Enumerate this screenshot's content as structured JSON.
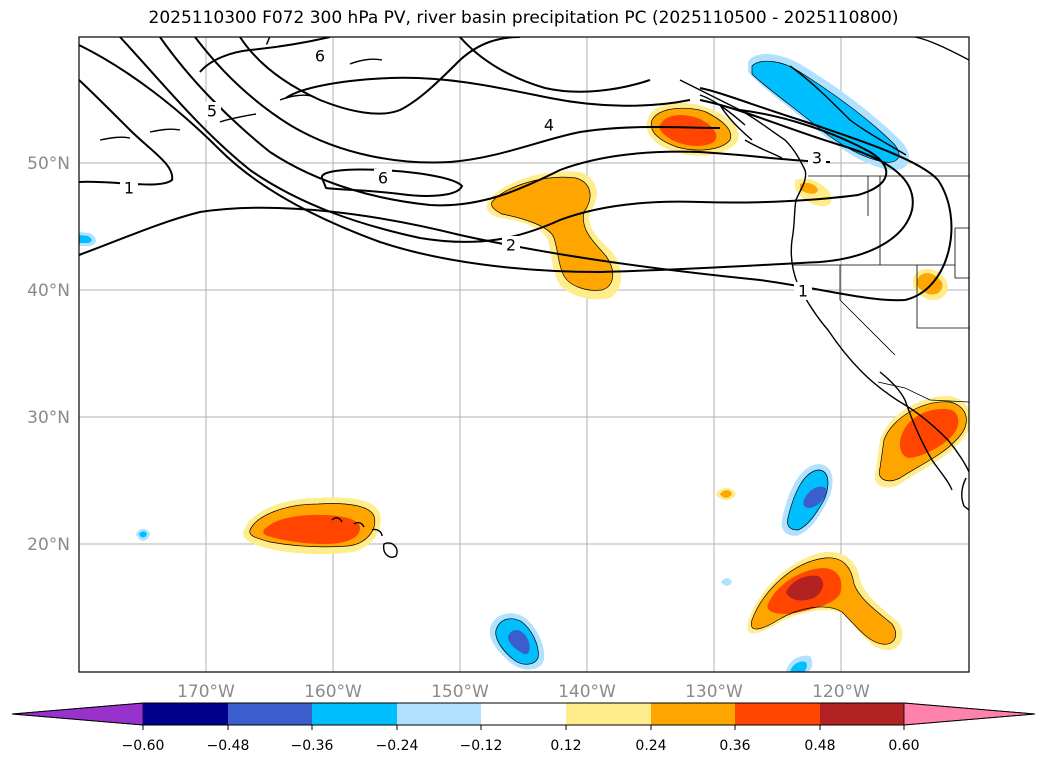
{
  "title": "2025110300 F072 300 hPa PV, river basin precipitation PC (2025110500 - 2025110800)",
  "map": {
    "lon_range": [
      -180,
      -110
    ],
    "lat_range": [
      10,
      60
    ],
    "lat_labels": [
      "20°N",
      "30°N",
      "40°N",
      "50°N"
    ],
    "lon_labels": [
      "170°W",
      "160°W",
      "150°W",
      "140°W",
      "130°W",
      "120°W"
    ],
    "pv_contour_labels": [
      "1",
      "1",
      "2",
      "3",
      "4",
      "5",
      "6",
      "6",
      "7"
    ]
  },
  "colorbar": {
    "ticks": [
      "−0.60",
      "−0.48",
      "−0.36",
      "−0.24",
      "−0.12",
      "0.12",
      "0.24",
      "0.36",
      "0.48",
      "0.60"
    ],
    "colors": [
      "#9932cc",
      "#00008b",
      "#3a5fcd",
      "#00bfff",
      "#b0e2ff",
      "#ffffff",
      "#ffec8b",
      "#ffa500",
      "#ff4500",
      "#b22222",
      "#ff82ab"
    ]
  }
}
